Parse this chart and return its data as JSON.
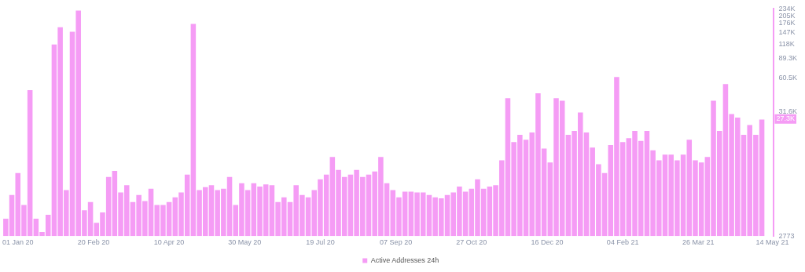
{
  "chart_data": {
    "type": "bar",
    "x": [
      "2019-12-24",
      "2019-12-28",
      "2020-01-01",
      "2020-01-05",
      "2020-01-09",
      "2020-01-13",
      "2020-01-17",
      "2020-01-21",
      "2020-01-25",
      "2020-01-29",
      "2020-02-02",
      "2020-02-06",
      "2020-02-10",
      "2020-02-14",
      "2020-02-18",
      "2020-02-22",
      "2020-02-26",
      "2020-03-01",
      "2020-03-05",
      "2020-03-09",
      "2020-03-13",
      "2020-03-17",
      "2020-03-21",
      "2020-03-25",
      "2020-03-29",
      "2020-04-02",
      "2020-04-06",
      "2020-04-10",
      "2020-04-14",
      "2020-04-18",
      "2020-04-22",
      "2020-04-26",
      "2020-04-30",
      "2020-05-04",
      "2020-05-08",
      "2020-05-12",
      "2020-05-16",
      "2020-05-20",
      "2020-05-24",
      "2020-05-28",
      "2020-06-01",
      "2020-06-05",
      "2020-06-09",
      "2020-06-13",
      "2020-06-17",
      "2020-06-21",
      "2020-06-25",
      "2020-06-29",
      "2020-07-03",
      "2020-07-07",
      "2020-07-11",
      "2020-07-15",
      "2020-07-19",
      "2020-07-23",
      "2020-07-27",
      "2020-07-31",
      "2020-08-04",
      "2020-08-08",
      "2020-08-12",
      "2020-08-16",
      "2020-08-20",
      "2020-08-24",
      "2020-08-28",
      "2020-09-01",
      "2020-09-05",
      "2020-09-09",
      "2020-09-13",
      "2020-09-17",
      "2020-09-21",
      "2020-09-25",
      "2020-09-29",
      "2020-10-03",
      "2020-10-07",
      "2020-10-11",
      "2020-10-15",
      "2020-10-19",
      "2020-10-23",
      "2020-10-27",
      "2020-10-31",
      "2020-11-04",
      "2020-11-08",
      "2020-11-12",
      "2020-11-16",
      "2020-11-20",
      "2020-11-24",
      "2020-11-28",
      "2020-12-02",
      "2020-12-06",
      "2020-12-10",
      "2020-12-14",
      "2020-12-18",
      "2020-12-22",
      "2020-12-26",
      "2020-12-30",
      "2021-01-03",
      "2021-01-07",
      "2021-01-11",
      "2021-01-15",
      "2021-01-19",
      "2021-01-23",
      "2021-01-27",
      "2021-01-31",
      "2021-02-04",
      "2021-02-08",
      "2021-02-12",
      "2021-02-16",
      "2021-02-20",
      "2021-02-24",
      "2021-02-28",
      "2021-03-04",
      "2021-03-08",
      "2021-03-12",
      "2021-03-16",
      "2021-03-20",
      "2021-03-24",
      "2021-03-28",
      "2021-04-01",
      "2021-04-05",
      "2021-04-09",
      "2021-04-13",
      "2021-04-17",
      "2021-04-21",
      "2021-04-25",
      "2021-04-29",
      "2021-05-03",
      "2021-05-07"
    ],
    "series": [
      {
        "name": "Active Addresses 24h",
        "color": "#f59cf5",
        "values": [
          3900,
          6200,
          9500,
          5100,
          48000,
          3900,
          3000,
          4200,
          117000,
          164000,
          6800,
          150000,
          227000,
          4600,
          5400,
          3600,
          4400,
          8800,
          9900,
          6500,
          7500,
          5400,
          6200,
          5500,
          7000,
          5100,
          5100,
          5400,
          5900,
          6500,
          9200,
          175000,
          6800,
          7200,
          7500,
          6800,
          7000,
          8800,
          5100,
          7800,
          6800,
          7800,
          7300,
          7600,
          7500,
          5400,
          5900,
          5400,
          7500,
          6200,
          5900,
          6800,
          8400,
          9200,
          13000,
          10100,
          8800,
          9200,
          10100,
          8800,
          9200,
          9800,
          13000,
          7800,
          6800,
          5900,
          6600,
          6600,
          6500,
          6500,
          6200,
          5900,
          5800,
          6200,
          6500,
          7300,
          6600,
          7000,
          8400,
          7000,
          7300,
          7500,
          12200,
          41000,
          17400,
          20000,
          18200,
          21000,
          45000,
          15300,
          11700,
          41000,
          39000,
          20000,
          21600,
          31000,
          21000,
          15600,
          11300,
          9500,
          16400,
          62000,
          17400,
          18800,
          21600,
          17800,
          21600,
          14800,
          12200,
          13600,
          13600,
          12200,
          13600,
          18200,
          12200,
          11700,
          13000,
          39000,
          21600,
          54000,
          30000,
          28000,
          20000,
          24300,
          20000,
          27000
        ]
      }
    ],
    "xlim": [
      "2019-12-21",
      "2021-05-15"
    ],
    "xticks": [
      {
        "value": "2020-01-01",
        "label": "01 Jan 20"
      },
      {
        "value": "2020-02-20",
        "label": "20 Feb 20"
      },
      {
        "value": "2020-04-10",
        "label": "10 Apr 20"
      },
      {
        "value": "2020-05-30",
        "label": "30 May 20"
      },
      {
        "value": "2020-07-19",
        "label": "19 Jul 20"
      },
      {
        "value": "2020-09-07",
        "label": "07 Sep 20"
      },
      {
        "value": "2020-10-27",
        "label": "27 Oct 20"
      },
      {
        "value": "2020-12-16",
        "label": "16 Dec 20"
      },
      {
        "value": "2021-02-04",
        "label": "04 Feb 21"
      },
      {
        "value": "2021-03-26",
        "label": "26 Mar 21"
      },
      {
        "value": "2021-05-14",
        "label": "14 May 21"
      }
    ],
    "ylim": [
      2773,
      234000
    ],
    "yticks": [
      2773,
      {
        "value": 31600,
        "label": "31.6K"
      },
      {
        "value": 60500,
        "label": "60.5K"
      },
      {
        "value": 89300,
        "label": "89.3K"
      },
      {
        "value": 118000,
        "label": "118K"
      },
      {
        "value": 147000,
        "label": "147K"
      },
      {
        "value": 176000,
        "label": "176K"
      },
      {
        "value": 205000,
        "label": "205K"
      },
      {
        "value": 234000,
        "label": "234K"
      }
    ],
    "log": "y",
    "grid": false,
    "legend": "bottom",
    "annotations": [
      {
        "text": "27.3K",
        "y": 27300
      }
    ]
  }
}
